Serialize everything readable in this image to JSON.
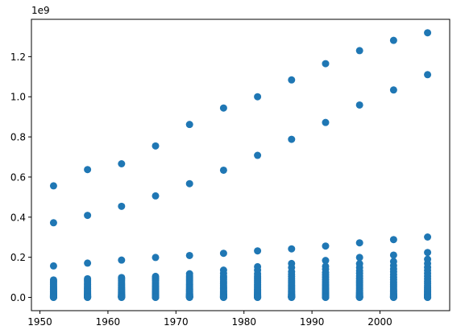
{
  "chart_data": {
    "type": "scatter",
    "title": "",
    "xlabel": "",
    "ylabel": "",
    "y_offset_label": "1e9",
    "xlim": [
      1948.75,
      2010.25
    ],
    "ylim": [
      -0.066,
      1.386
    ],
    "xticks": [
      1950,
      1960,
      1970,
      1980,
      1990,
      2000
    ],
    "xtick_labels": [
      "1950",
      "1960",
      "1970",
      "1980",
      "1990",
      "2000"
    ],
    "yticks": [
      0.0,
      0.2,
      0.4,
      0.6,
      0.8,
      1.0,
      1.2
    ],
    "ytick_labels": [
      "0.0",
      "0.2",
      "0.4",
      "0.6",
      "0.8",
      "1.0",
      "1.2"
    ],
    "grid": false,
    "marker_color": "#1f77b4",
    "y_unit_multiplier": 1000000000,
    "x": [
      1952,
      1957,
      1962,
      1967,
      1972,
      1977,
      1982,
      1987,
      1992,
      1997,
      2002,
      2007
    ],
    "series": [
      {
        "values": [
          [
            0.556,
            0.372,
            0.157,
            0.087,
            0.081,
            0.074,
            0.066,
            0.059,
            0.052,
            0.046,
            0.04,
            0.035,
            0.03,
            0.026,
            0.022,
            0.019,
            0.016,
            0.013,
            0.011,
            0.009,
            0.007,
            0.006,
            0.005,
            0.004,
            0.003,
            0.002,
            0.0015,
            0.001,
            0.0005,
            0.0002
          ],
          [
            0.637,
            0.409,
            0.171,
            0.093,
            0.086,
            0.079,
            0.071,
            0.064,
            0.057,
            0.05,
            0.044,
            0.038,
            0.033,
            0.028,
            0.024,
            0.02,
            0.017,
            0.014,
            0.012,
            0.01,
            0.008,
            0.006,
            0.005,
            0.004,
            0.003,
            0.002,
            0.0015,
            0.001,
            0.0005,
            0.0002
          ],
          [
            0.666,
            0.454,
            0.186,
            0.099,
            0.092,
            0.085,
            0.077,
            0.069,
            0.062,
            0.055,
            0.048,
            0.042,
            0.036,
            0.031,
            0.026,
            0.022,
            0.018,
            0.015,
            0.012,
            0.01,
            0.008,
            0.007,
            0.005,
            0.004,
            0.003,
            0.002,
            0.0015,
            0.001,
            0.0005,
            0.0002
          ],
          [
            0.755,
            0.506,
            0.199,
            0.105,
            0.099,
            0.092,
            0.084,
            0.075,
            0.067,
            0.059,
            0.052,
            0.045,
            0.039,
            0.033,
            0.028,
            0.024,
            0.02,
            0.016,
            0.013,
            0.011,
            0.009,
            0.007,
            0.005,
            0.004,
            0.003,
            0.002,
            0.0015,
            0.001,
            0.0005,
            0.0002
          ],
          [
            0.862,
            0.567,
            0.209,
            0.118,
            0.107,
            0.099,
            0.091,
            0.082,
            0.073,
            0.064,
            0.056,
            0.049,
            0.042,
            0.036,
            0.031,
            0.026,
            0.021,
            0.017,
            0.014,
            0.012,
            0.009,
            0.007,
            0.006,
            0.004,
            0.003,
            0.002,
            0.0015,
            0.001,
            0.0005,
            0.0002
          ],
          [
            0.944,
            0.634,
            0.22,
            0.136,
            0.12,
            0.107,
            0.098,
            0.089,
            0.079,
            0.07,
            0.061,
            0.053,
            0.046,
            0.039,
            0.033,
            0.028,
            0.023,
            0.019,
            0.015,
            0.012,
            0.01,
            0.008,
            0.006,
            0.004,
            0.003,
            0.002,
            0.0015,
            0.001,
            0.0005,
            0.0002
          ],
          [
            1.0,
            0.708,
            0.232,
            0.153,
            0.136,
            0.118,
            0.106,
            0.096,
            0.086,
            0.076,
            0.066,
            0.058,
            0.05,
            0.042,
            0.036,
            0.03,
            0.025,
            0.02,
            0.016,
            0.013,
            0.01,
            0.008,
            0.006,
            0.005,
            0.003,
            0.002,
            0.0015,
            0.001,
            0.0005,
            0.0002
          ],
          [
            1.084,
            0.788,
            0.242,
            0.169,
            0.149,
            0.128,
            0.115,
            0.104,
            0.093,
            0.082,
            0.072,
            0.062,
            0.054,
            0.046,
            0.039,
            0.032,
            0.027,
            0.022,
            0.017,
            0.014,
            0.011,
            0.008,
            0.006,
            0.005,
            0.003,
            0.002,
            0.0015,
            0.001,
            0.0005,
            0.0002
          ],
          [
            1.165,
            0.872,
            0.256,
            0.184,
            0.155,
            0.141,
            0.124,
            0.112,
            0.1,
            0.088,
            0.077,
            0.067,
            0.058,
            0.049,
            0.042,
            0.035,
            0.029,
            0.023,
            0.019,
            0.015,
            0.011,
            0.009,
            0.007,
            0.005,
            0.003,
            0.002,
            0.0015,
            0.001,
            0.0005,
            0.0002
          ],
          [
            1.23,
            0.959,
            0.272,
            0.199,
            0.168,
            0.149,
            0.133,
            0.12,
            0.107,
            0.094,
            0.082,
            0.072,
            0.062,
            0.053,
            0.045,
            0.037,
            0.031,
            0.025,
            0.02,
            0.016,
            0.012,
            0.009,
            0.007,
            0.005,
            0.003,
            0.002,
            0.0015,
            0.001,
            0.0005,
            0.0002
          ],
          [
            1.281,
            1.034,
            0.288,
            0.211,
            0.179,
            0.159,
            0.142,
            0.128,
            0.114,
            0.1,
            0.088,
            0.076,
            0.066,
            0.056,
            0.047,
            0.039,
            0.032,
            0.026,
            0.021,
            0.017,
            0.013,
            0.01,
            0.007,
            0.005,
            0.004,
            0.002,
            0.0015,
            0.001,
            0.0005,
            0.0002
          ],
          [
            1.319,
            1.11,
            0.301,
            0.224,
            0.19,
            0.169,
            0.15,
            0.135,
            0.12,
            0.106,
            0.093,
            0.081,
            0.07,
            0.059,
            0.05,
            0.042,
            0.034,
            0.028,
            0.022,
            0.017,
            0.013,
            0.01,
            0.008,
            0.005,
            0.004,
            0.002,
            0.0015,
            0.001,
            0.0005,
            0.0002
          ]
        ]
      }
    ]
  }
}
